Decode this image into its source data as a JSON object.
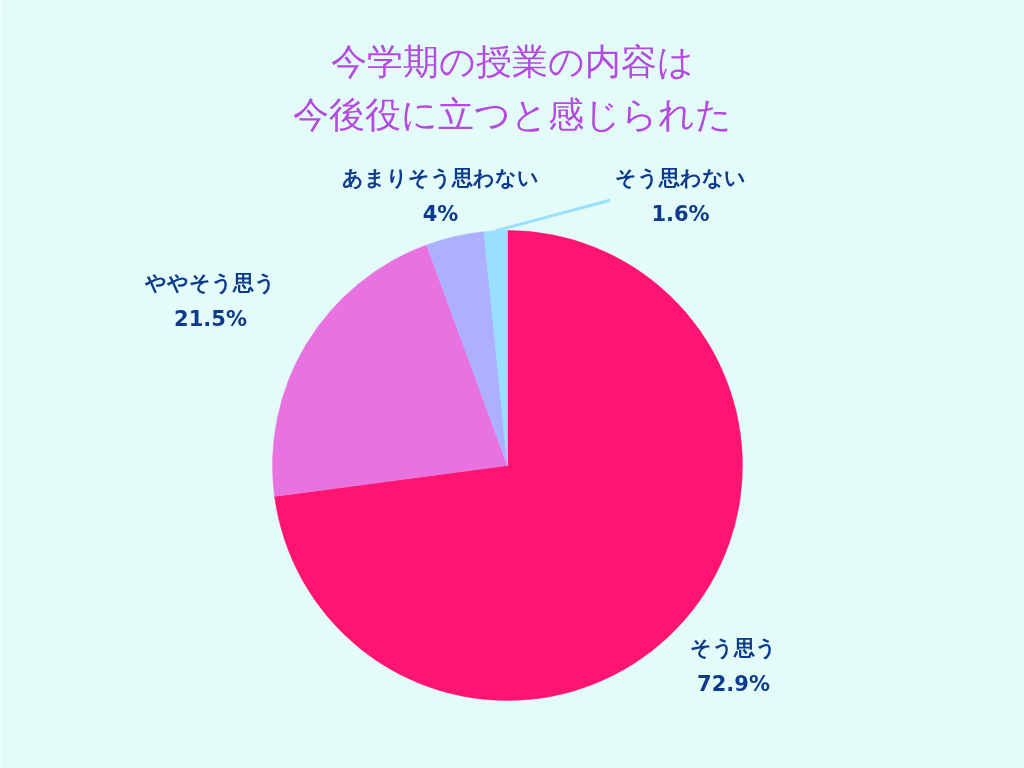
{
  "chart_data": {
    "type": "pie",
    "title": "今学期の授業の内容は今後役に立つと感じられた",
    "categories": [
      "そう思う",
      "ややそう思う",
      "あまりそう思わない",
      "そう思わない"
    ],
    "values": [
      72.9,
      21.5,
      4,
      1.6
    ],
    "value_labels": [
      "72.9%",
      "21.5%",
      "4%",
      "1.6%"
    ],
    "colors": [
      "#ff1472",
      "#e872e0",
      "#adb0ff",
      "#99e0ff"
    ]
  }
}
